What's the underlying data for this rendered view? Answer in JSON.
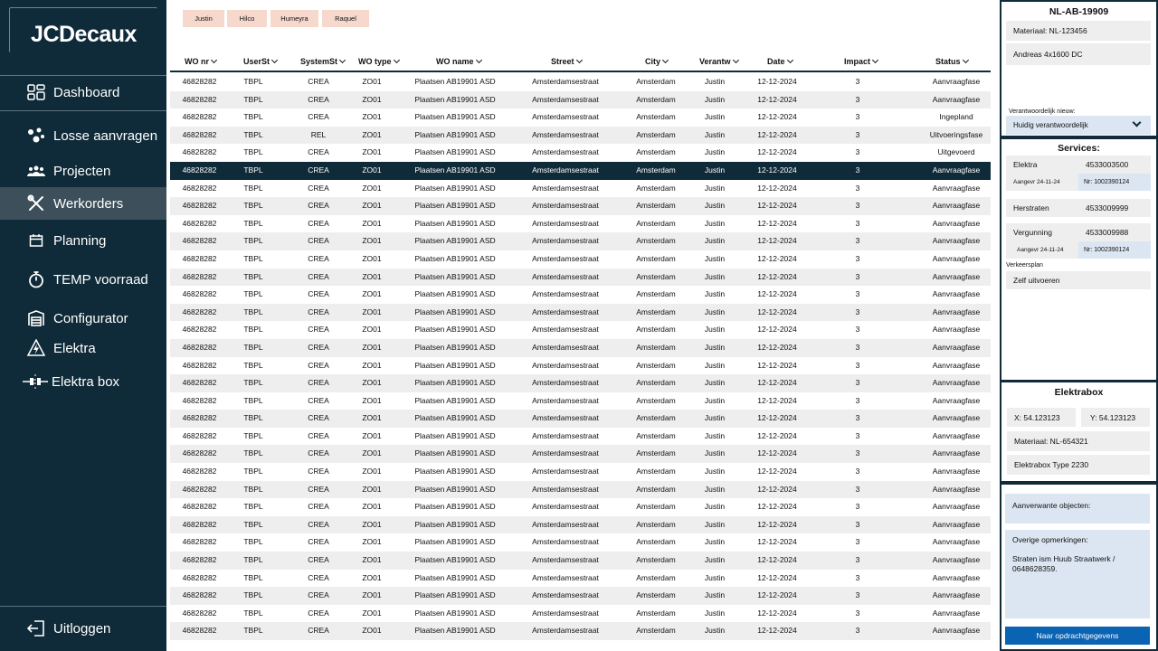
{
  "brand": {
    "logo_text": "JCDecaux"
  },
  "sidebar": {
    "items": [
      {
        "label": "Dashboard",
        "icon": "dashboard-icon"
      },
      {
        "label": "Losse aanvragen",
        "icon": "requests-icon"
      },
      {
        "label": "Projecten",
        "icon": "projects-icon"
      },
      {
        "label": "Werkorders",
        "icon": "tools-icon"
      },
      {
        "label": "Planning",
        "icon": "calendar-icon"
      },
      {
        "label": "TEMP voorraad",
        "icon": "stopwatch-icon"
      },
      {
        "label": "Configurator",
        "icon": "garage-icon"
      },
      {
        "label": "Elektra",
        "icon": "electricity-icon"
      },
      {
        "label": "Elektra box",
        "icon": "plug-icon"
      }
    ],
    "active_index": 3,
    "logout_label": "Uitloggen"
  },
  "filters": {
    "chips": [
      "Justin",
      "Hilco",
      "Humeyra",
      "Raquel"
    ]
  },
  "table": {
    "headers": [
      "WO nr",
      "UserSt",
      "SystemSt",
      "WO type",
      "WO name",
      "Street",
      "City",
      "Verantw",
      "Date",
      "Impact",
      "Status"
    ],
    "rows": [
      [
        "46828282",
        "TBPL",
        "CREA",
        "ZO01",
        "Plaatsen AB19901 ASD",
        "Amsterdamsestraat",
        "Amsterdam",
        "Justin",
        "12-12-2024",
        "3",
        "Aanvraagfase"
      ],
      [
        "46828282",
        "TBPL",
        "CREA",
        "ZO01",
        "Plaatsen AB19901 ASD",
        "Amsterdamsestraat",
        "Amsterdam",
        "Justin",
        "12-12-2024",
        "3",
        "Aanvraagfase"
      ],
      [
        "46828282",
        "TBPL",
        "CREA",
        "ZO01",
        "Plaatsen AB19901 ASD",
        "Amsterdamsestraat",
        "Amsterdam",
        "Justin",
        "12-12-2024",
        "3",
        "Ingepland"
      ],
      [
        "46828282",
        "TBPL",
        "REL",
        "ZO01",
        "Plaatsen AB19901 ASD",
        "Amsterdamsestraat",
        "Amsterdam",
        "Justin",
        "12-12-2024",
        "3",
        "Uitvoeringsfase"
      ],
      [
        "46828282",
        "TBPL",
        "CREA",
        "ZO01",
        "Plaatsen AB19901 ASD",
        "Amsterdamsestraat",
        "Amsterdam",
        "Justin",
        "12-12-2024",
        "3",
        "Uitgevoerd"
      ],
      [
        "46828282",
        "TBPL",
        "CREA",
        "ZO01",
        "Plaatsen AB19901 ASD",
        "Amsterdamsestraat",
        "Amsterdam",
        "Justin",
        "12-12-2024",
        "3",
        "Aanvraagfase"
      ],
      [
        "46828282",
        "TBPL",
        "CREA",
        "ZO01",
        "Plaatsen AB19901 ASD",
        "Amsterdamsestraat",
        "Amsterdam",
        "Justin",
        "12-12-2024",
        "3",
        "Aanvraagfase"
      ],
      [
        "46828282",
        "TBPL",
        "CREA",
        "ZO01",
        "Plaatsen AB19901 ASD",
        "Amsterdamsestraat",
        "Amsterdam",
        "Justin",
        "12-12-2024",
        "3",
        "Aanvraagfase"
      ],
      [
        "46828282",
        "TBPL",
        "CREA",
        "ZO01",
        "Plaatsen AB19901 ASD",
        "Amsterdamsestraat",
        "Amsterdam",
        "Justin",
        "12-12-2024",
        "3",
        "Aanvraagfase"
      ],
      [
        "46828282",
        "TBPL",
        "CREA",
        "ZO01",
        "Plaatsen AB19901 ASD",
        "Amsterdamsestraat",
        "Amsterdam",
        "Justin",
        "12-12-2024",
        "3",
        "Aanvraagfase"
      ],
      [
        "46828282",
        "TBPL",
        "CREA",
        "ZO01",
        "Plaatsen AB19901 ASD",
        "Amsterdamsestraat",
        "Amsterdam",
        "Justin",
        "12-12-2024",
        "3",
        "Aanvraagfase"
      ],
      [
        "46828282",
        "TBPL",
        "CREA",
        "ZO01",
        "Plaatsen AB19901 ASD",
        "Amsterdamsestraat",
        "Amsterdam",
        "Justin",
        "12-12-2024",
        "3",
        "Aanvraagfase"
      ],
      [
        "46828282",
        "TBPL",
        "CREA",
        "ZO01",
        "Plaatsen AB19901 ASD",
        "Amsterdamsestraat",
        "Amsterdam",
        "Justin",
        "12-12-2024",
        "3",
        "Aanvraagfase"
      ],
      [
        "46828282",
        "TBPL",
        "CREA",
        "ZO01",
        "Plaatsen AB19901 ASD",
        "Amsterdamsestraat",
        "Amsterdam",
        "Justin",
        "12-12-2024",
        "3",
        "Aanvraagfase"
      ],
      [
        "46828282",
        "TBPL",
        "CREA",
        "ZO01",
        "Plaatsen AB19901 ASD",
        "Amsterdamsestraat",
        "Amsterdam",
        "Justin",
        "12-12-2024",
        "3",
        "Aanvraagfase"
      ],
      [
        "46828282",
        "TBPL",
        "CREA",
        "ZO01",
        "Plaatsen AB19901 ASD",
        "Amsterdamsestraat",
        "Amsterdam",
        "Justin",
        "12-12-2024",
        "3",
        "Aanvraagfase"
      ],
      [
        "46828282",
        "TBPL",
        "CREA",
        "ZO01",
        "Plaatsen AB19901 ASD",
        "Amsterdamsestraat",
        "Amsterdam",
        "Justin",
        "12-12-2024",
        "3",
        "Aanvraagfase"
      ],
      [
        "46828282",
        "TBPL",
        "CREA",
        "ZO01",
        "Plaatsen AB19901 ASD",
        "Amsterdamsestraat",
        "Amsterdam",
        "Justin",
        "12-12-2024",
        "3",
        "Aanvraagfase"
      ],
      [
        "46828282",
        "TBPL",
        "CREA",
        "ZO01",
        "Plaatsen AB19901 ASD",
        "Amsterdamsestraat",
        "Amsterdam",
        "Justin",
        "12-12-2024",
        "3",
        "Aanvraagfase"
      ],
      [
        "46828282",
        "TBPL",
        "CREA",
        "ZO01",
        "Plaatsen AB19901 ASD",
        "Amsterdamsestraat",
        "Amsterdam",
        "Justin",
        "12-12-2024",
        "3",
        "Aanvraagfase"
      ],
      [
        "46828282",
        "TBPL",
        "CREA",
        "ZO01",
        "Plaatsen AB19901 ASD",
        "Amsterdamsestraat",
        "Amsterdam",
        "Justin",
        "12-12-2024",
        "3",
        "Aanvraagfase"
      ],
      [
        "46828282",
        "TBPL",
        "CREA",
        "ZO01",
        "Plaatsen AB19901 ASD",
        "Amsterdamsestraat",
        "Amsterdam",
        "Justin",
        "12-12-2024",
        "3",
        "Aanvraagfase"
      ],
      [
        "46828282",
        "TBPL",
        "CREA",
        "ZO01",
        "Plaatsen AB19901 ASD",
        "Amsterdamsestraat",
        "Amsterdam",
        "Justin",
        "12-12-2024",
        "3",
        "Aanvraagfase"
      ],
      [
        "46828282",
        "TBPL",
        "CREA",
        "ZO01",
        "Plaatsen AB19901 ASD",
        "Amsterdamsestraat",
        "Amsterdam",
        "Justin",
        "12-12-2024",
        "3",
        "Aanvraagfase"
      ],
      [
        "46828282",
        "TBPL",
        "CREA",
        "ZO01",
        "Plaatsen AB19901 ASD",
        "Amsterdamsestraat",
        "Amsterdam",
        "Justin",
        "12-12-2024",
        "3",
        "Aanvraagfase"
      ],
      [
        "46828282",
        "TBPL",
        "CREA",
        "ZO01",
        "Plaatsen AB19901 ASD",
        "Amsterdamsestraat",
        "Amsterdam",
        "Justin",
        "12-12-2024",
        "3",
        "Aanvraagfase"
      ],
      [
        "46828282",
        "TBPL",
        "CREA",
        "ZO01",
        "Plaatsen AB19901 ASD",
        "Amsterdamsestraat",
        "Amsterdam",
        "Justin",
        "12-12-2024",
        "3",
        "Aanvraagfase"
      ],
      [
        "46828282",
        "TBPL",
        "CREA",
        "ZO01",
        "Plaatsen AB19901 ASD",
        "Amsterdamsestraat",
        "Amsterdam",
        "Justin",
        "12-12-2024",
        "3",
        "Aanvraagfase"
      ],
      [
        "46828282",
        "TBPL",
        "CREA",
        "ZO01",
        "Plaatsen AB19901 ASD",
        "Amsterdamsestraat",
        "Amsterdam",
        "Justin",
        "12-12-2024",
        "3",
        "Aanvraagfase"
      ],
      [
        "46828282",
        "TBPL",
        "CREA",
        "ZO01",
        "Plaatsen AB19901 ASD",
        "Amsterdamsestraat",
        "Amsterdam",
        "Justin",
        "12-12-2024",
        "3",
        "Aanvraagfase"
      ],
      [
        "46828282",
        "TBPL",
        "CREA",
        "ZO01",
        "Plaatsen AB19901 ASD",
        "Amsterdamsestraat",
        "Amsterdam",
        "Justin",
        "12-12-2024",
        "3",
        "Aanvraagfase"
      ],
      [
        "46828282",
        "TBPL",
        "CREA",
        "ZO01",
        "Plaatsen AB19901 ASD",
        "Amsterdamsestraat",
        "Amsterdam",
        "Justin",
        "12-12-2024",
        "3",
        "Aanvraagfase"
      ]
    ],
    "selected_index": 5
  },
  "detail": {
    "title": "NL-AB-19909",
    "material": "Materiaal: NL-123456",
    "description": "Andreas 4x1600 DC",
    "owner_label": "Verantwoordelijk nieuw:",
    "owner_value": "Huidig verantwoordelijk"
  },
  "services": {
    "title": "Services:",
    "elektra_label": "Elektra",
    "elektra_number": "4533003500",
    "elektra_date": "Aangevr 24-11-24",
    "elektra_nr": "Nr: 1002390124",
    "herstraten_label": "Herstraten",
    "herstraten_number": "4533009999",
    "vergunning_label": "Vergunning",
    "vergunning_number": "4533009988",
    "vergunning_date": "Aangevr 24-11-24",
    "vergunning_nr": "Nr: 1002390124",
    "verkeersplan_label": "Verkeersplan",
    "verkeersplan_value": "Zelf uitvoeren"
  },
  "elektrabox": {
    "title": "Elektrabox",
    "x": "X: 54.123123",
    "y": "Y: 54.123123",
    "material": "Materiaal: NL-654321",
    "type": "Elektrabox Type 2230"
  },
  "notes": {
    "related_label": "Aanverwante objecten:",
    "other_label": "Overige opmerkingen:",
    "other_text": "Straten ism Huub Straatwerk / 0648628359.",
    "button_label": "Naar opdrachtgegevens"
  },
  "colors": {
    "sidebar": "#0f2a38",
    "chip": "#f6d8cd",
    "field_blue": "#dce6f2",
    "button": "#0b63b3"
  }
}
